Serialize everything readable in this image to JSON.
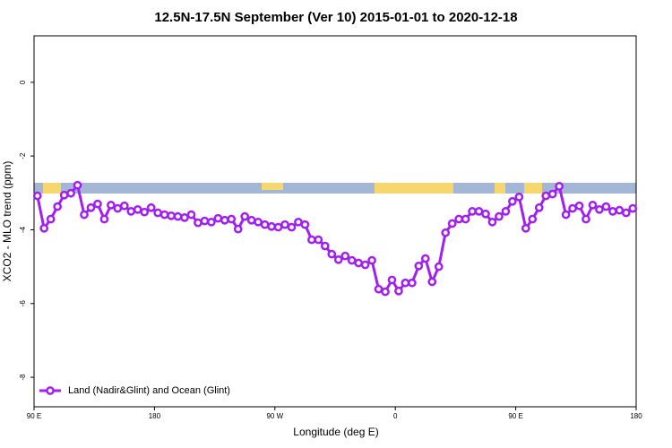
{
  "chart_data": {
    "type": "line",
    "title": "12.5N-17.5N September (Ver 10)   2015-01-01 to 2020-12-18",
    "x_label": "Longitude (deg E)",
    "y_label": "XCO2 - MLO trend (ppm)",
    "xlim": [
      90,
      540
    ],
    "xticks": [
      {
        "value": 90,
        "label": "90 E"
      },
      180,
      {
        "value": 270,
        "label": "90 W"
      },
      {
        "value": 360,
        "label": "0"
      },
      {
        "value": 450,
        "label": "90 E"
      },
      {
        "value": 540,
        "label": "180"
      }
    ],
    "ylim": [
      -8.8,
      1.26
    ],
    "yticks": [
      0,
      -2,
      -4,
      -6,
      -8
    ],
    "grid": false,
    "legend": "bottom-left",
    "x": [
      92.5,
      97.5,
      102.5,
      107.5,
      112.5,
      117.5,
      122.5,
      127.5,
      132.5,
      137.5,
      142.5,
      147.5,
      152.5,
      157.5,
      162.5,
      167.5,
      172.5,
      177.5,
      182.5,
      187.5,
      192.5,
      197.5,
      202.5,
      207.5,
      212.5,
      217.5,
      222.5,
      227.5,
      232.5,
      237.5,
      242.5,
      247.5,
      252.5,
      257.5,
      262.5,
      267.5,
      272.5,
      277.5,
      282.5,
      287.5,
      292.5,
      297.5,
      302.5,
      307.5,
      312.5,
      317.5,
      322.5,
      327.5,
      332.5,
      337.5,
      342.5,
      347.5,
      352.5,
      357.5,
      362.5,
      367.5,
      372.5,
      377.5,
      382.5,
      387.5,
      392.5,
      397.5,
      402.5,
      407.5,
      412.5,
      417.5,
      422.5,
      427.5,
      432.5,
      437.5,
      442.5,
      447.5,
      452.5,
      457.5,
      462.5,
      467.5,
      472.5,
      477.5,
      482.5,
      487.5,
      492.5,
      497.5,
      502.5,
      507.5,
      512.5,
      517.5,
      522.5,
      527.5,
      532.5,
      537.5
    ],
    "series": [
      {
        "name": "Land (Nadir&Glint) and Ocean (Glint)",
        "color": "#a020f0",
        "values": [
          -3.08,
          -3.96,
          -3.71,
          -3.37,
          -3.06,
          -3.01,
          -2.79,
          -3.59,
          -3.4,
          -3.3,
          -3.71,
          -3.33,
          -3.42,
          -3.35,
          -3.5,
          -3.45,
          -3.52,
          -3.4,
          -3.54,
          -3.59,
          -3.62,
          -3.64,
          -3.67,
          -3.59,
          -3.81,
          -3.76,
          -3.79,
          -3.69,
          -3.74,
          -3.71,
          -3.98,
          -3.64,
          -3.74,
          -3.79,
          -3.86,
          -3.91,
          -3.93,
          -3.86,
          -3.93,
          -3.79,
          -3.86,
          -4.27,
          -4.27,
          -4.44,
          -4.66,
          -4.81,
          -4.71,
          -4.83,
          -4.9,
          -4.95,
          -4.83,
          -5.61,
          -5.68,
          -5.36,
          -5.66,
          -5.44,
          -5.44,
          -4.98,
          -4.78,
          -5.41,
          -5.0,
          -4.08,
          -3.83,
          -3.71,
          -3.71,
          -3.5,
          -3.5,
          -3.57,
          -3.79,
          -3.64,
          -3.5,
          -3.23,
          -3.11,
          -3.96,
          -3.71,
          -3.4,
          -3.08,
          -3.03,
          -2.82,
          -3.59,
          -3.42,
          -3.35,
          -3.71,
          -3.33,
          -3.45,
          -3.37,
          -3.5,
          -3.47,
          -3.54,
          -3.42
        ]
      }
    ]
  }
}
